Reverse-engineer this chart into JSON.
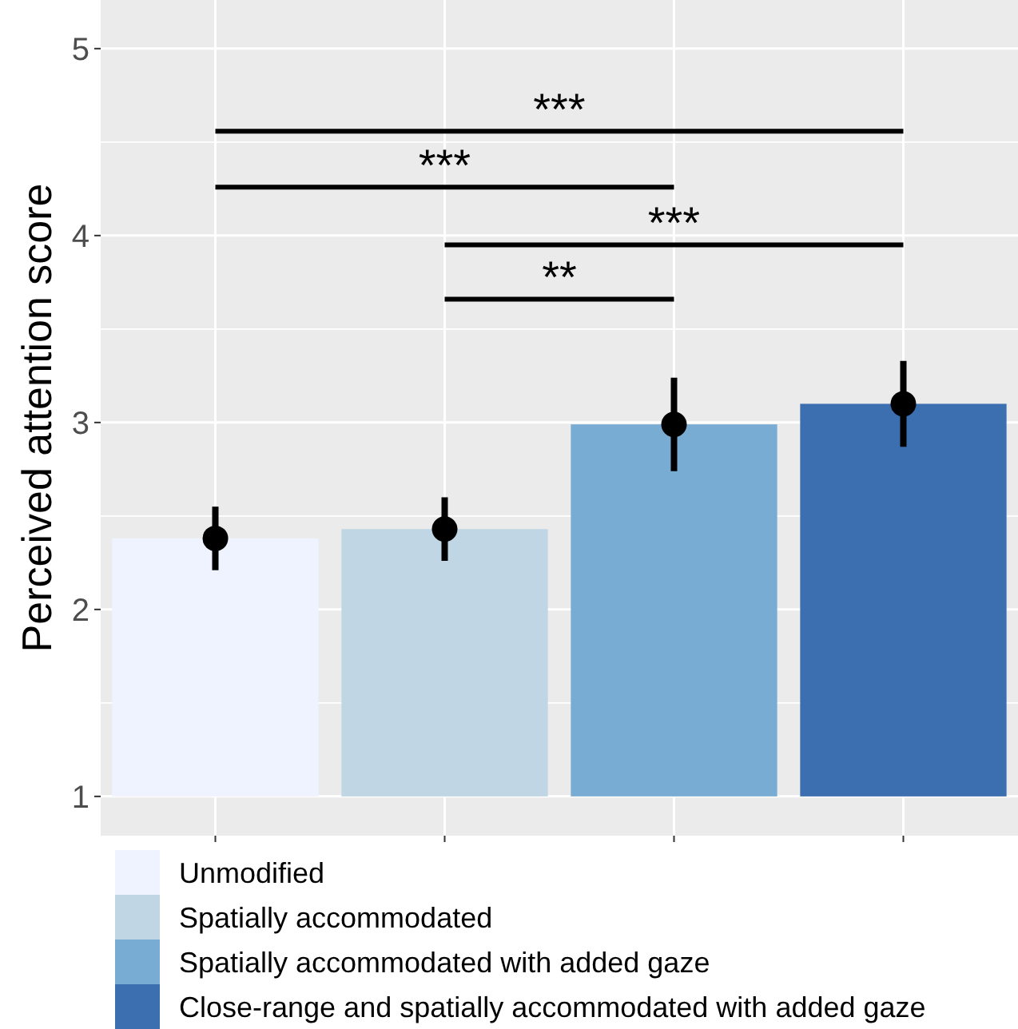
{
  "chart_data": {
    "type": "bar",
    "ylabel": "Perceived attention score",
    "categories": [
      null,
      null,
      null,
      null
    ],
    "series": [
      {
        "name": "Unmodified",
        "color": "#eff3ff",
        "base": [
          1,
          null,
          null,
          null
        ],
        "values": [
          1.38,
          null,
          null,
          null
        ]
      },
      {
        "name": "Spatially accommodated",
        "color": "#c0d6e5",
        "base": [
          null,
          1,
          null,
          null
        ],
        "values": [
          null,
          1.43,
          null,
          null
        ]
      },
      {
        "name": "Spatially accommodated with added gaze",
        "color": "#79acd3",
        "base": [
          null,
          null,
          1,
          null
        ],
        "values": [
          null,
          null,
          1.99,
          null
        ]
      },
      {
        "name": "Close-range and spatially accommodated with added gaze",
        "color": "#3b6fb0",
        "base": [
          null,
          null,
          null,
          1
        ],
        "values": [
          null,
          null,
          null,
          2.1
        ]
      },
      {
        "type": "scatter",
        "color": "#000000",
        "marker": "circle",
        "values": [
          2.38,
          2.43,
          2.99,
          3.1
        ],
        "errors": [
          [
            2.21,
            2.55
          ],
          [
            2.26,
            2.6
          ],
          [
            2.74,
            3.24
          ],
          [
            2.87,
            3.33
          ]
        ]
      }
    ],
    "annotations": [
      "***",
      "***",
      "***",
      "**"
    ],
    "ylim": [
      0.79,
      5.26
    ],
    "yticks": [
      1,
      2,
      3,
      4,
      5
    ],
    "grid": true,
    "legend": "bottom",
    "tick_labels": "y"
  }
}
